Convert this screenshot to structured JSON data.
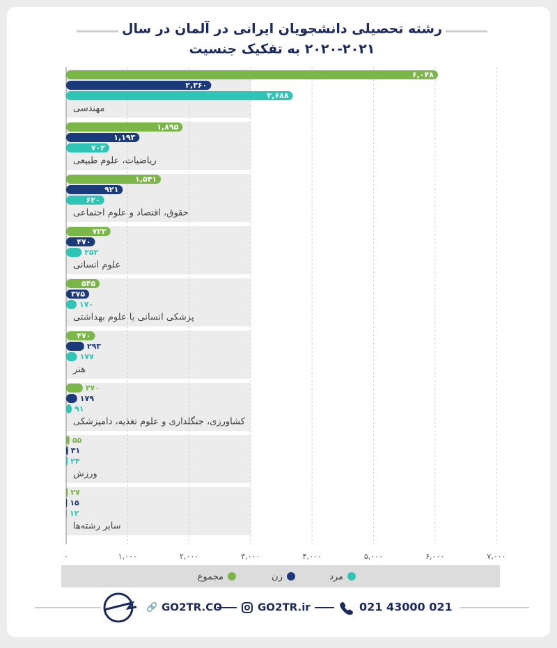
{
  "chart_data": {
    "type": "bar",
    "orientation": "horizontal",
    "title": [
      "رشته تحصیلی دانشجویان ایرانی در آلمان در سال",
      "۲۰۲۰-۲۰۲۱ به تفکیک جنسیت"
    ],
    "categories": [
      "مهندسی",
      "ریاضیات، علوم طبیعی",
      "حقوق، اقتصاد و علوم اجتماعی",
      "علوم انسانی",
      "پزشکی انسانی یا علوم بهداشتی",
      "هنر",
      "کشاورزی، جنگلداری و علوم تغذیه، دامپزشکی",
      "ورزش",
      "سایر رشته‌ها"
    ],
    "series": [
      {
        "name": "مجموع",
        "color": "#7ab648",
        "values": [
          6048,
          1895,
          1541,
          722,
          545,
          470,
          270,
          55,
          27
        ],
        "value_labels": [
          "۶,۰۴۸",
          "۱,۸۹۵",
          "۱,۵۴۱",
          "۷۲۲",
          "۵۴۵",
          "۴۷۰",
          "۲۷۰",
          "۵۵",
          "۲۷"
        ]
      },
      {
        "name": "زن",
        "color": "#1b3a7a",
        "values": [
          2360,
          1193,
          921,
          470,
          375,
          293,
          179,
          31,
          15
        ],
        "value_labels": [
          "۲,۳۶۰",
          "۱,۱۹۳",
          "۹۲۱",
          "۴۷۰",
          "۳۷۵",
          "۲۹۳",
          "۱۷۹",
          "۳۱",
          "۱۵"
        ]
      },
      {
        "name": "مرد",
        "color": "#2ec4b6",
        "values": [
          3688,
          702,
          620,
          252,
          170,
          177,
          91,
          24,
          12
        ],
        "value_labels": [
          "۳,۶۸۸",
          "۷۰۲",
          "۶۲۰",
          "۲۵۲",
          "۱۷۰",
          "۱۷۷",
          "۹۱",
          "۲۴",
          "۱۲"
        ]
      }
    ],
    "xlim": [
      0,
      7000
    ],
    "xticks": [
      {
        "value": 0,
        "label": "۰"
      },
      {
        "value": 1000,
        "label": "۱,۰۰۰"
      },
      {
        "value": 2000,
        "label": "۲,۰۰۰"
      },
      {
        "value": 3000,
        "label": "۳,۰۰۰"
      },
      {
        "value": 4000,
        "label": "۴,۰۰۰"
      },
      {
        "value": 5000,
        "label": "۵,۰۰۰"
      },
      {
        "value": 6000,
        "label": "۶,۰۰۰"
      },
      {
        "value": 7000,
        "label": "۷,۰۰۰"
      }
    ],
    "grid": true,
    "legend": "bottom"
  },
  "footer": {
    "website": "GO2TR.CO",
    "instagram": "GO2TR.ir",
    "phone": "021 43000 021"
  }
}
